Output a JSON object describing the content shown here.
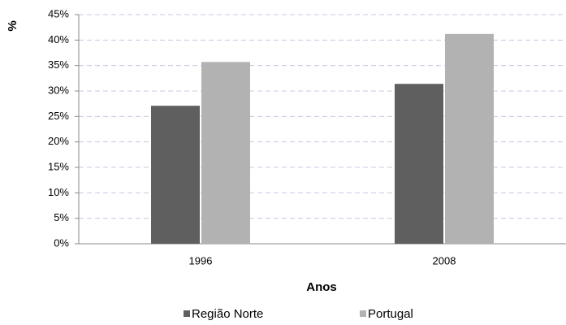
{
  "chart_data": {
    "type": "bar",
    "y_label": "%",
    "x_label": "Anos",
    "categories": [
      "1996",
      "2008"
    ],
    "series": [
      {
        "name": "Região Norte",
        "color": "#5f5f5f",
        "values": [
          27.1,
          31.4
        ]
      },
      {
        "name": "Portugal",
        "color": "#b2b2b2",
        "values": [
          35.7,
          41.2
        ]
      }
    ],
    "ylim": [
      0,
      45
    ],
    "yticks": [
      {
        "value": 0,
        "label": "0%"
      },
      {
        "value": 5,
        "label": "5%"
      },
      {
        "value": 10,
        "label": "10%"
      },
      {
        "value": 15,
        "label": "15%"
      },
      {
        "value": 20,
        "label": "20%"
      },
      {
        "value": 25,
        "label": "25%"
      },
      {
        "value": 30,
        "label": "30%"
      },
      {
        "value": 35,
        "label": "35%"
      },
      {
        "value": 40,
        "label": "40%"
      },
      {
        "value": 45,
        "label": "45%"
      }
    ],
    "grid": true,
    "legend": "bottom"
  }
}
